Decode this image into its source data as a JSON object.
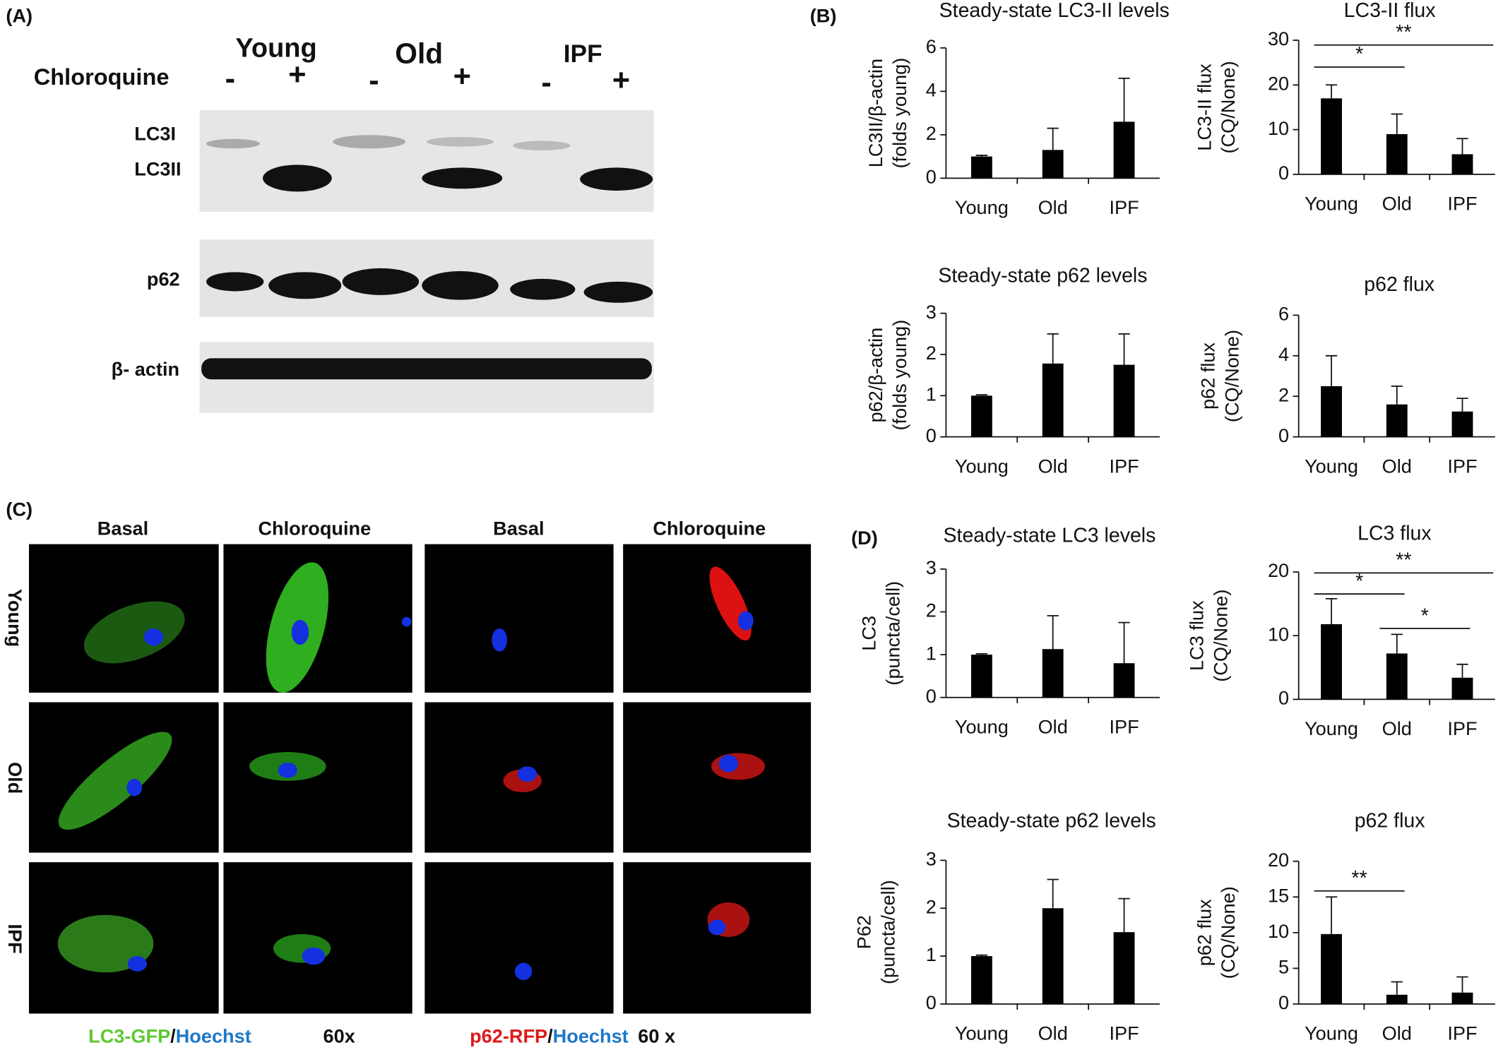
{
  "panels": {
    "A": "(A)",
    "B": "(B)",
    "C": "(C)",
    "D": "(D)"
  },
  "western_blot": {
    "treatment": "Chloroquine",
    "groups": [
      "Young",
      "Old",
      "IPF"
    ],
    "signs": [
      "-",
      "+",
      "-",
      "+",
      "-",
      "+"
    ],
    "bands": [
      "LC3I",
      "LC3II",
      "p62",
      "β- actin"
    ]
  },
  "microscopy": {
    "columns": [
      "Basal",
      "Chloroquine",
      "Basal",
      "Chloroquine"
    ],
    "rows": [
      "Young",
      "Old",
      "IPF"
    ],
    "legend_left": [
      "LC3-GFP",
      "/",
      "Hoechst",
      "60x"
    ],
    "legend_right": [
      "p62-RFP",
      "/",
      "Hoechst",
      "60 x"
    ]
  },
  "chart_data": [
    {
      "type": "bar",
      "title": "Steady-state LC3-II levels",
      "ylabel": [
        "LC3II/β-actin",
        "(folds young)"
      ],
      "categories": [
        "Young",
        "Old",
        "IPF"
      ],
      "values": [
        1,
        1.3,
        2.6
      ],
      "errors": [
        0.05,
        1.0,
        2.0
      ],
      "color": "#000000",
      "ylim": [
        0,
        6
      ],
      "yticks": [
        0,
        2,
        4,
        6
      ],
      "significance": []
    },
    {
      "type": "bar",
      "title": "LC3-II flux",
      "ylabel": [
        "LC3-II flux",
        "(CQ/None)"
      ],
      "categories": [
        "Young",
        "Old",
        "IPF"
      ],
      "values": [
        17,
        9,
        4.5
      ],
      "errors": [
        3,
        4.5,
        3.5
      ],
      "color": "#000000",
      "ylim": [
        0,
        30
      ],
      "yticks": [
        0,
        10,
        20,
        30
      ],
      "significance": [
        {
          "from": "Young",
          "to": "IPF",
          "label": "**"
        },
        {
          "from": "Young",
          "to": "Old",
          "label": "*"
        }
      ]
    },
    {
      "type": "bar",
      "title": "Steady-state p62 levels",
      "ylabel": [
        "p62/β-actin",
        "(folds young)"
      ],
      "categories": [
        "Young",
        "Old",
        "IPF"
      ],
      "values": [
        1,
        1.78,
        1.75
      ],
      "errors": [
        0.02,
        0.72,
        0.75
      ],
      "color": "#000000",
      "ylim": [
        0,
        3
      ],
      "yticks": [
        0,
        1,
        2,
        3
      ],
      "significance": []
    },
    {
      "type": "bar",
      "title": "p62 flux",
      "ylabel": [
        "p62 flux",
        "(CQ/None)"
      ],
      "categories": [
        "Young",
        "Old",
        "IPF"
      ],
      "values": [
        2.5,
        1.6,
        1.25
      ],
      "errors": [
        1.5,
        0.9,
        0.65
      ],
      "color": "#000000",
      "ylim": [
        0,
        6
      ],
      "yticks": [
        0,
        2,
        4,
        6
      ],
      "significance": []
    },
    {
      "type": "bar",
      "title": "Steady-state LC3 levels",
      "ylabel": [
        "LC3",
        "(puncta/cell)"
      ],
      "categories": [
        "Young",
        "Old",
        "IPF"
      ],
      "values": [
        1,
        1.13,
        0.8
      ],
      "errors": [
        0.02,
        0.78,
        0.95
      ],
      "color": "#000000",
      "ylim": [
        0,
        3
      ],
      "yticks": [
        0,
        1,
        2,
        3
      ],
      "significance": []
    },
    {
      "type": "bar",
      "title": "LC3 flux",
      "ylabel": [
        "LC3 flux",
        "(CQ/None)"
      ],
      "categories": [
        "Young",
        "Old",
        "IPF"
      ],
      "values": [
        11.8,
        7.2,
        3.4
      ],
      "errors": [
        4,
        3,
        2.1
      ],
      "color": "#000000",
      "ylim": [
        0,
        20
      ],
      "yticks": [
        0,
        10,
        20
      ],
      "significance": [
        {
          "from": "Young",
          "to": "IPF",
          "label": "**"
        },
        {
          "from": "Young",
          "to": "Old",
          "label": "*"
        },
        {
          "from": "Old",
          "to": "IPF",
          "label": "*"
        }
      ]
    },
    {
      "type": "bar",
      "title": "Steady-state p62 levels",
      "ylabel": [
        "P62",
        "(puncta/cell)"
      ],
      "categories": [
        "Young",
        "Old",
        "IPF"
      ],
      "values": [
        1,
        2,
        1.5
      ],
      "errors": [
        0.02,
        0.6,
        0.7
      ],
      "color": "#000000",
      "ylim": [
        0,
        3
      ],
      "yticks": [
        0,
        1,
        2,
        3
      ],
      "significance": []
    },
    {
      "type": "bar",
      "title": "p62 flux",
      "ylabel": [
        "p62 flux",
        "(CQ/None)"
      ],
      "categories": [
        "Young",
        "Old",
        "IPF"
      ],
      "values": [
        9.8,
        1.3,
        1.6
      ],
      "errors": [
        5.2,
        1.8,
        2.2
      ],
      "color": "#000000",
      "ylim": [
        0,
        20
      ],
      "yticks": [
        0,
        5,
        10,
        15,
        20
      ],
      "significance": [
        {
          "from": "Young",
          "to": "Old",
          "label": "**"
        }
      ]
    }
  ]
}
